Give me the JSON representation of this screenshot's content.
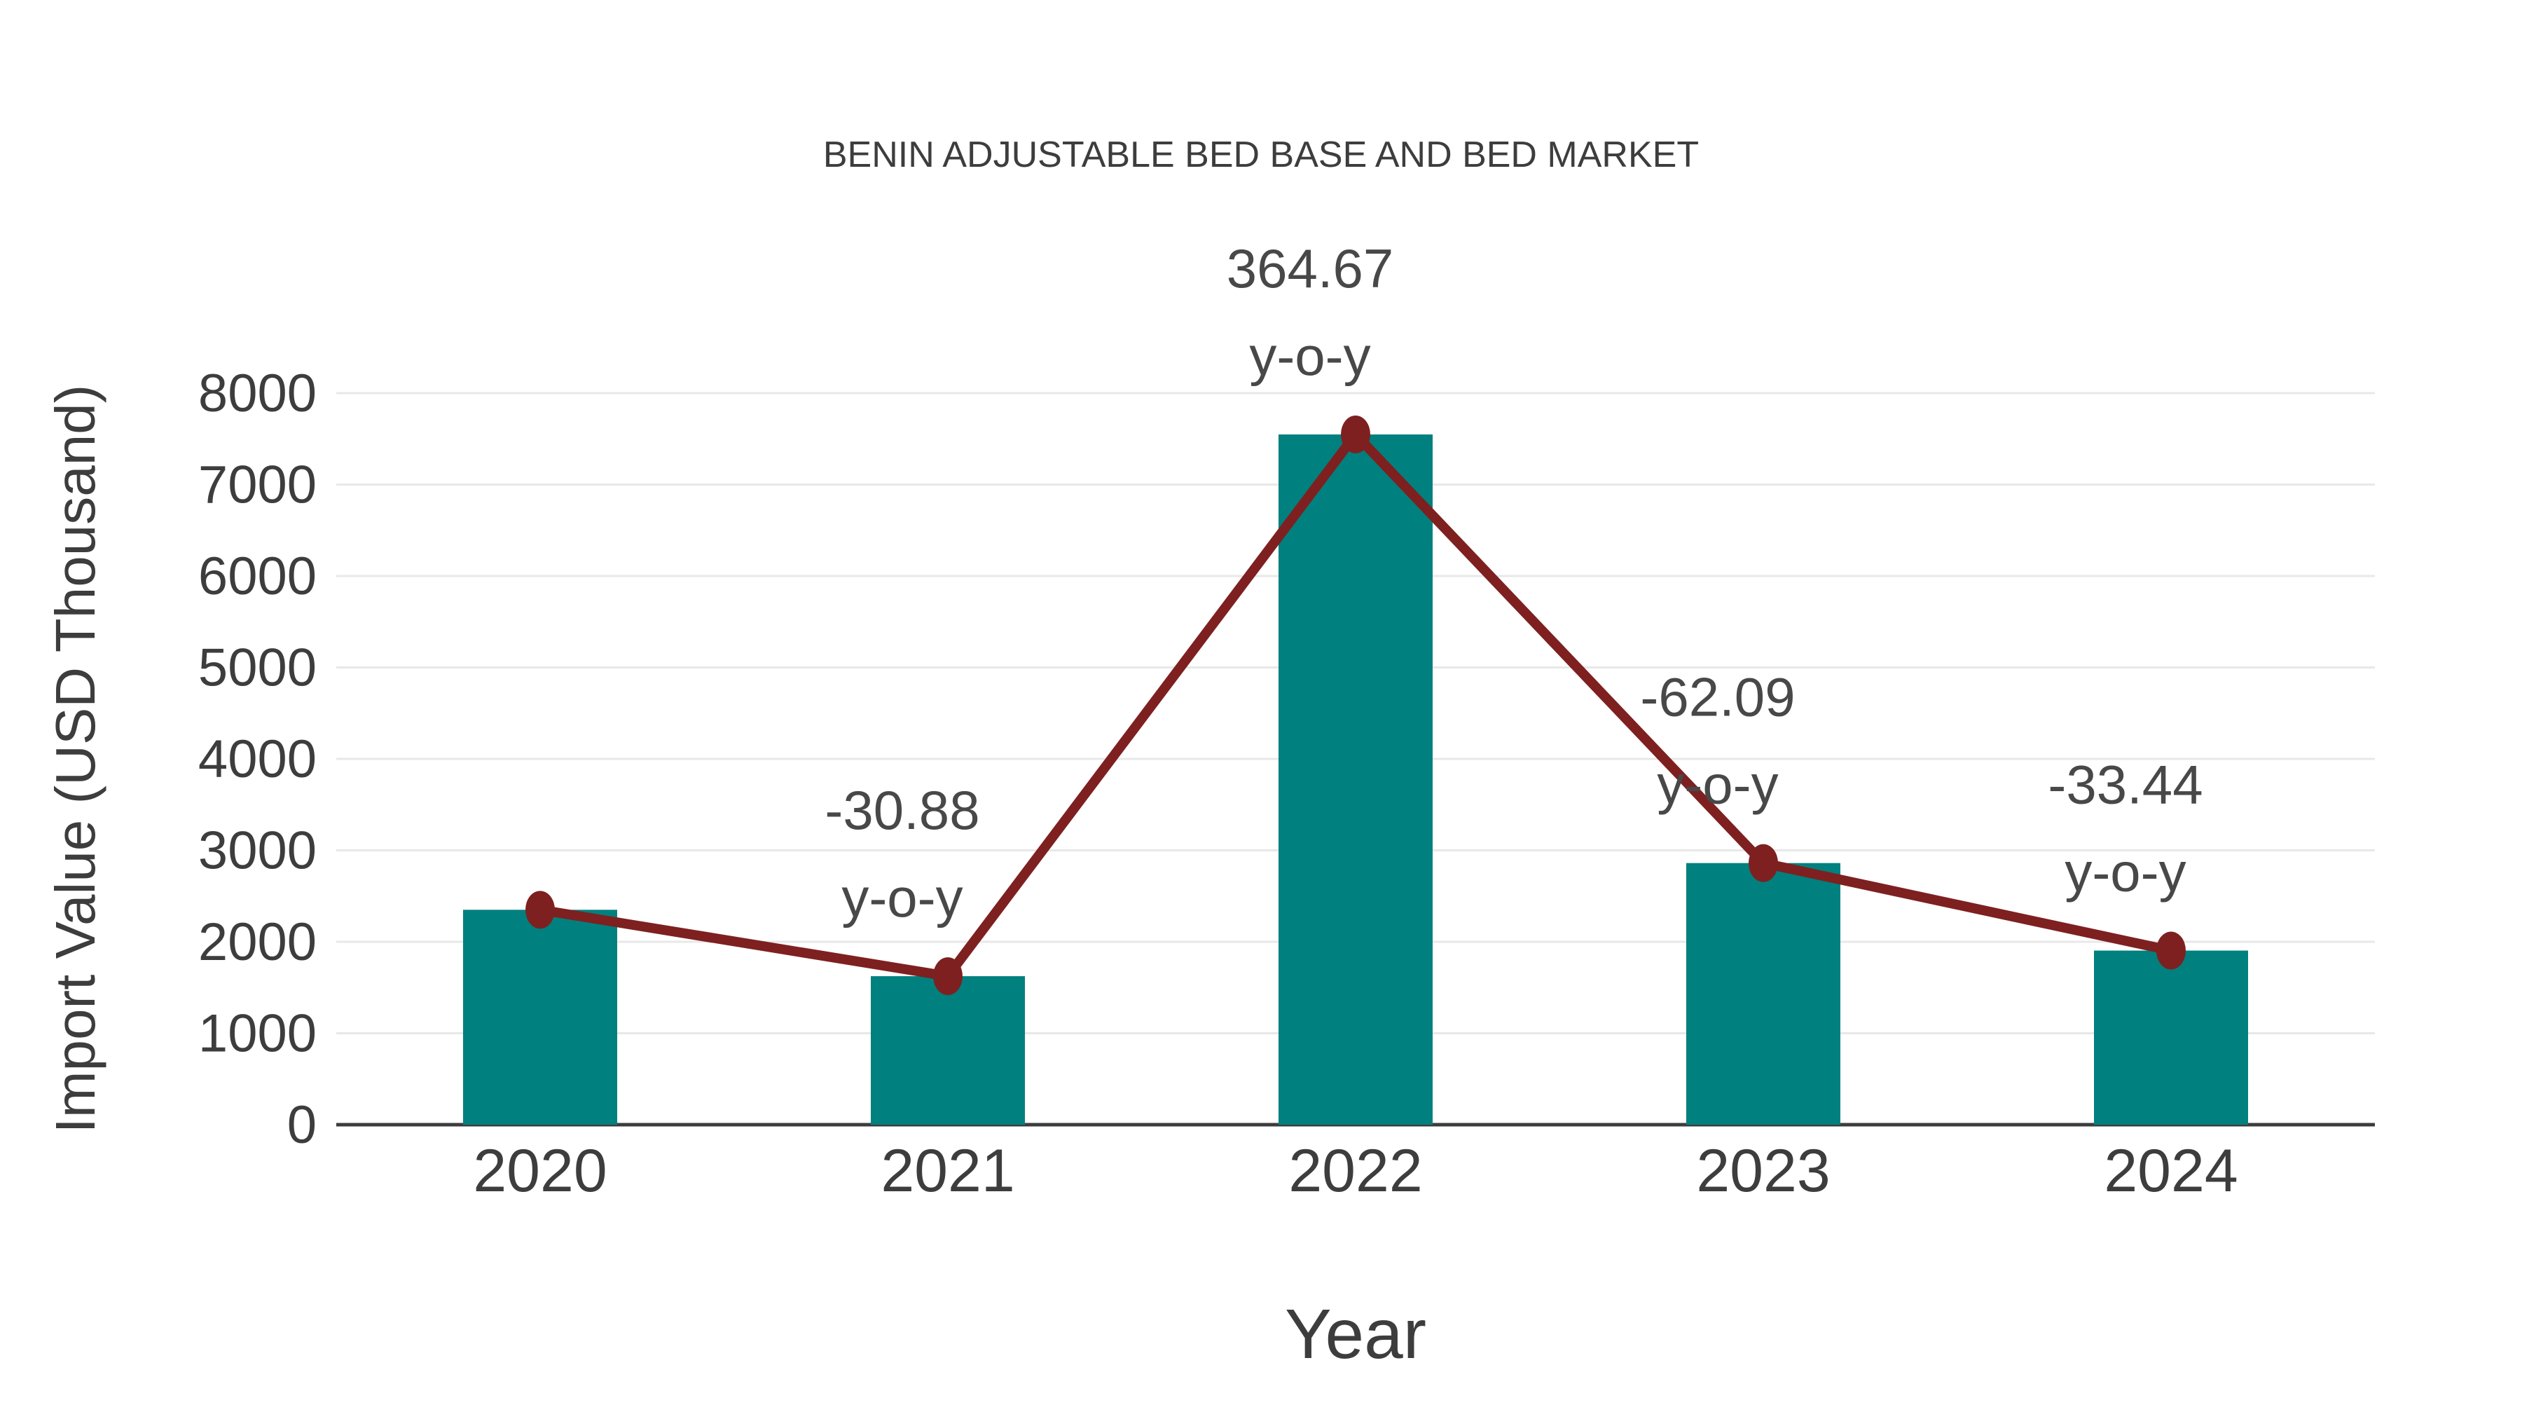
{
  "chart_data": {
    "type": "bar",
    "title": "BENIN ADJUSTABLE BED BASE AND BED MARKET",
    "xlabel": "Year",
    "ylabel": "Import Value (USD Thousand)",
    "categories": [
      "2020",
      "2021",
      "2022",
      "2023",
      "2024"
    ],
    "series": [
      {
        "name": "Import Value",
        "type": "bar",
        "values": [
          2350,
          1624,
          7548,
          2861,
          1904
        ]
      },
      {
        "name": "Trend",
        "type": "line",
        "values": [
          2350,
          1624,
          7548,
          2861,
          1904
        ]
      }
    ],
    "annotations": [
      {
        "category": "2021",
        "value_label": "-30.88",
        "suffix_label": "y-o-y"
      },
      {
        "category": "2022",
        "value_label": "364.67",
        "suffix_label": "y-o-y"
      },
      {
        "category": "2023",
        "value_label": "-62.09",
        "suffix_label": "y-o-y"
      },
      {
        "category": "2024",
        "value_label": "-33.44",
        "suffix_label": "y-o-y"
      }
    ],
    "ylim": [
      0,
      8000
    ],
    "ytick_step": 1000,
    "grid": true,
    "legend": false,
    "colors": {
      "bar": "#00807E",
      "line": "#7E2020",
      "marker": "#7E2020",
      "gridline": "#E8E8E8",
      "axis_line": "#3C3C3C",
      "text": "#3D3D3D",
      "background": "#FFFFFF"
    }
  }
}
